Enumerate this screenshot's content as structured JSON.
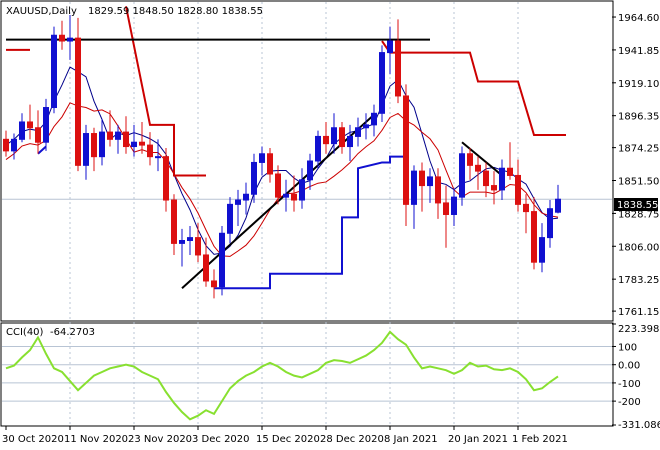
{
  "header": {
    "symbol": "XAUUSD,Daily",
    "ohlc": "1829.59 1848.50 1828.80 1838.55"
  },
  "indicator": {
    "name": "CCI(40)",
    "value": "-64.2703"
  },
  "colors": {
    "bull": "#1010d0",
    "bear": "#dc1010",
    "blue_line": "#00008b",
    "red_line": "#cc0000",
    "cci": "#88e030",
    "grid": "#b8c4d4",
    "frame": "#000000",
    "price_tag_bg": "#000000"
  },
  "chart_data": [
    {
      "type": "candlestick",
      "title": "XAUUSD,Daily",
      "ylim": [
        1755,
        1975
      ],
      "y_ticks": [
        "1964.60",
        "1941.85",
        "1919.10",
        "1896.35",
        "1874.25",
        "1851.50",
        "1828.75",
        "1806.00",
        "1783.25",
        "1761.15"
      ],
      "x_ticks": [
        "30 Oct 2020",
        "11 Nov 2020",
        "23 Nov 2020",
        "3 Dec 2020",
        "15 Dec 2020",
        "28 Dec 2020",
        "8 Jan 2021",
        "20 Jan 2021",
        "1 Feb 2021"
      ],
      "current_price": "1838.55",
      "candles": [
        [
          1880,
          1886,
          1868,
          1872
        ],
        [
          1872,
          1884,
          1866,
          1880
        ],
        [
          1880,
          1898,
          1878,
          1892
        ],
        [
          1892,
          1904,
          1880,
          1888
        ],
        [
          1888,
          1900,
          1870,
          1878
        ],
        [
          1878,
          1908,
          1872,
          1902
        ],
        [
          1902,
          1958,
          1898,
          1952
        ],
        [
          1952,
          1962,
          1942,
          1948
        ],
        [
          1948,
          1966,
          1935,
          1950
        ],
        [
          1950,
          1964,
          1858,
          1862
        ],
        [
          1862,
          1890,
          1852,
          1884
        ],
        [
          1884,
          1888,
          1858,
          1868
        ],
        [
          1868,
          1894,
          1862,
          1885
        ],
        [
          1885,
          1900,
          1875,
          1880
        ],
        [
          1880,
          1890,
          1870,
          1885
        ],
        [
          1885,
          1896,
          1870,
          1875
        ],
        [
          1875,
          1890,
          1868,
          1878
        ],
        [
          1878,
          1892,
          1870,
          1876
        ],
        [
          1876,
          1885,
          1862,
          1868
        ],
        [
          1868,
          1880,
          1858,
          1868
        ],
        [
          1868,
          1874,
          1830,
          1838
        ],
        [
          1838,
          1842,
          1800,
          1808
        ],
        [
          1808,
          1818,
          1792,
          1810
        ],
        [
          1810,
          1820,
          1800,
          1812
        ],
        [
          1812,
          1822,
          1795,
          1800
        ],
        [
          1800,
          1812,
          1778,
          1782
        ],
        [
          1782,
          1790,
          1770,
          1778
        ],
        [
          1778,
          1820,
          1772,
          1815
        ],
        [
          1815,
          1840,
          1808,
          1835
        ],
        [
          1835,
          1845,
          1820,
          1838
        ],
        [
          1838,
          1850,
          1828,
          1842
        ],
        [
          1842,
          1870,
          1836,
          1864
        ],
        [
          1864,
          1875,
          1855,
          1870
        ],
        [
          1870,
          1874,
          1850,
          1856
        ],
        [
          1856,
          1862,
          1835,
          1840
        ],
        [
          1840,
          1852,
          1830,
          1842
        ],
        [
          1842,
          1855,
          1830,
          1838
        ],
        [
          1838,
          1860,
          1832,
          1852
        ],
        [
          1852,
          1870,
          1845,
          1865
        ],
        [
          1865,
          1886,
          1860,
          1882
        ],
        [
          1882,
          1892,
          1870,
          1877
        ],
        [
          1877,
          1898,
          1870,
          1888
        ],
        [
          1888,
          1892,
          1870,
          1875
        ],
        [
          1875,
          1890,
          1865,
          1882
        ],
        [
          1882,
          1895,
          1875,
          1888
        ],
        [
          1888,
          1898,
          1880,
          1890
        ],
        [
          1890,
          1904,
          1882,
          1898
        ],
        [
          1898,
          1945,
          1892,
          1940
        ],
        [
          1940,
          1958,
          1925,
          1948
        ],
        [
          1948,
          1963,
          1905,
          1910
        ],
        [
          1910,
          1918,
          1820,
          1835
        ],
        [
          1835,
          1862,
          1818,
          1858
        ],
        [
          1858,
          1864,
          1830,
          1848
        ],
        [
          1848,
          1860,
          1836,
          1854
        ],
        [
          1854,
          1860,
          1825,
          1836
        ],
        [
          1836,
          1848,
          1805,
          1828
        ],
        [
          1828,
          1846,
          1820,
          1840
        ],
        [
          1840,
          1875,
          1834,
          1870
        ],
        [
          1870,
          1874,
          1852,
          1862
        ],
        [
          1862,
          1868,
          1845,
          1858
        ],
        [
          1858,
          1864,
          1840,
          1848
        ],
        [
          1848,
          1858,
          1835,
          1845
        ],
        [
          1845,
          1866,
          1838,
          1860
        ],
        [
          1860,
          1878,
          1852,
          1855
        ],
        [
          1855,
          1866,
          1830,
          1835
        ],
        [
          1835,
          1842,
          1815,
          1830
        ],
        [
          1830,
          1840,
          1790,
          1795
        ],
        [
          1795,
          1822,
          1788,
          1812
        ],
        [
          1812,
          1838,
          1805,
          1832
        ],
        [
          1829.59,
          1848.5,
          1828.8,
          1838.55
        ]
      ],
      "cci_ylim": [
        -331.0861,
        223.3982
      ],
      "cci_ticks": [
        "223.3982",
        "100",
        "0.00",
        "-100",
        "-200",
        "-331.0861"
      ],
      "cci_values": [
        -20,
        -5,
        40,
        80,
        150,
        60,
        -20,
        -40,
        -90,
        -140,
        -100,
        -60,
        -40,
        -20,
        -10,
        0,
        -10,
        -40,
        -60,
        -80,
        -150,
        -210,
        -260,
        -300,
        -280,
        -250,
        -270,
        -200,
        -130,
        -90,
        -60,
        -40,
        -10,
        10,
        -10,
        -40,
        -60,
        -70,
        -50,
        -30,
        10,
        25,
        20,
        10,
        30,
        50,
        80,
        120,
        180,
        140,
        110,
        40,
        -20,
        -10,
        -20,
        -30,
        -50,
        -30,
        10,
        -10,
        -5,
        -25,
        -30,
        -20,
        -40,
        -80,
        -140,
        -130,
        -95,
        -64.27
      ]
    }
  ]
}
